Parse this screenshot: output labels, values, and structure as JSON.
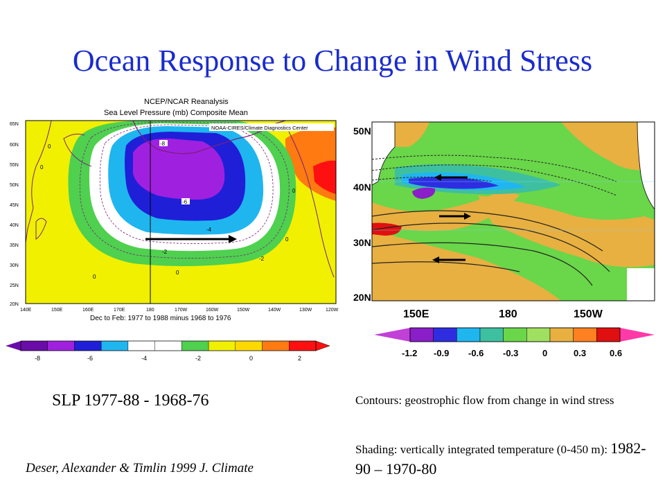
{
  "slide": {
    "title": "Ocean Response to Change in  Wind Stress"
  },
  "left_map": {
    "header_line1": "NCEP/NCAR Reanalysis",
    "header_line2": "Sea Level Pressure (mb) Composite Mean",
    "credit": "NOAA-CIRES/Climate Diagnostics Center",
    "footer": "Dec to Feb: 1977 to 1988 minus 1968 to 1976",
    "lat_ticks": [
      "65N",
      "60N",
      "55N",
      "50N",
      "45N",
      "40N",
      "35N",
      "30N",
      "25N",
      "20N"
    ],
    "lon_ticks": [
      "140E",
      "150E",
      "160E",
      "170E",
      "180",
      "170W",
      "160W",
      "150W",
      "140W",
      "130W",
      "120W"
    ],
    "contour_labels": [
      "-8",
      "-6",
      "-4",
      "-2",
      "-2",
      "0",
      "0",
      "0",
      "0",
      "0",
      "0"
    ],
    "colorbar_labels": [
      "-8",
      "-6",
      "-4",
      "-2",
      "0",
      "2"
    ],
    "colorbar_colors": [
      "#6a0da8",
      "#a020e0",
      "#1f1fd8",
      "#1fb6f0",
      "#ffffff",
      "#ffffff",
      "#4fd04f",
      "#f0f000",
      "#ffd800",
      "#ff7a10",
      "#ff1010"
    ]
  },
  "right_map": {
    "lat_ticks": [
      "50N",
      "40N",
      "30N",
      "20N"
    ],
    "lon_ticks": [
      "150E",
      "180",
      "150W"
    ],
    "colorbar_labels": [
      "-1.2",
      "-0.9",
      "-0.6",
      "-0.3",
      "0",
      "0.3",
      "0.6"
    ],
    "colorbar_colors": [
      "#c040d8",
      "#8a1ec8",
      "#2e2ee0",
      "#1fb6f0",
      "#3ec0a0",
      "#6ad64a",
      "#a0e060",
      "#e8b040",
      "#ff8020",
      "#e01010",
      "#ff3aa8"
    ]
  },
  "captions": {
    "slp": "SLP 1977-88 - 1968-76",
    "contours": "Contours: geostrophic flow from change in wind stress",
    "shading_prefix": "Shading: vertically integrated temperature (0-450 m): ",
    "shading_years": "1982-90 – 1970-80",
    "citation": "Deser, Alexander & Timlin 1999 J. Climate"
  },
  "colors": {
    "title": "#1a2ccc",
    "land": "#ffffff",
    "yellow": "#f0f000",
    "green": "#4fd04f",
    "cyan": "#1fb6f0",
    "blue": "#1f1fd8",
    "purple": "#a020e0",
    "orange": "#ff7a10",
    "red": "#ff1010"
  }
}
